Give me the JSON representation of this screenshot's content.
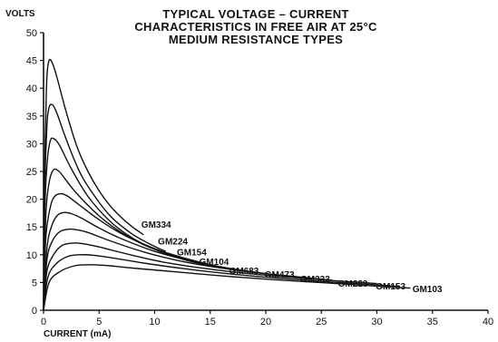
{
  "chart_data": {
    "type": "line",
    "title_lines": [
      "TYPICAL VOLTAGE – CURRENT",
      "CHARACTERISTICS IN FREE AIR AT 25°C",
      "MEDIUM RESISTANCE TYPES"
    ],
    "xlabel": "CURRENT (mA)",
    "ylabel": "VOLTS",
    "xlim": [
      0,
      40
    ],
    "ylim": [
      0,
      50
    ],
    "x_ticks": [
      0,
      5,
      10,
      15,
      20,
      25,
      30,
      35,
      40
    ],
    "y_ticks": [
      0,
      5,
      10,
      15,
      20,
      25,
      30,
      35,
      40,
      45,
      50
    ],
    "grid": false,
    "series": [
      {
        "name": "GM334",
        "points": [
          [
            0,
            0
          ],
          [
            0.1,
            24
          ],
          [
            0.2,
            35
          ],
          [
            0.3,
            42
          ],
          [
            0.5,
            45
          ],
          [
            0.8,
            44.5
          ],
          [
            1.2,
            42
          ],
          [
            2,
            36
          ],
          [
            3,
            29.5
          ],
          [
            4,
            25
          ],
          [
            5,
            21.5
          ],
          [
            6,
            18.8
          ],
          [
            7,
            16.7
          ],
          [
            8,
            15
          ],
          [
            9,
            13.6
          ]
        ]
      },
      {
        "name": "GM224",
        "points": [
          [
            0,
            0
          ],
          [
            0.1,
            21
          ],
          [
            0.3,
            33
          ],
          [
            0.5,
            36.5
          ],
          [
            0.8,
            37
          ],
          [
            1.2,
            35.5
          ],
          [
            2,
            31
          ],
          [
            3,
            26
          ],
          [
            4,
            22.3
          ],
          [
            6,
            17
          ],
          [
            8,
            13.7
          ],
          [
            10,
            11.5
          ],
          [
            11,
            10.6
          ]
        ]
      },
      {
        "name": "GM154",
        "points": [
          [
            0,
            0
          ],
          [
            0.1,
            17
          ],
          [
            0.3,
            26
          ],
          [
            0.6,
            30.5
          ],
          [
            1,
            30.8
          ],
          [
            1.5,
            29.5
          ],
          [
            2.5,
            25.5
          ],
          [
            4,
            20.5
          ],
          [
            6,
            16
          ],
          [
            8,
            13
          ],
          [
            10,
            11
          ],
          [
            12,
            9.6
          ],
          [
            13,
            9
          ]
        ]
      },
      {
        "name": "GM104",
        "points": [
          [
            0,
            0
          ],
          [
            0.2,
            17
          ],
          [
            0.5,
            23
          ],
          [
            0.9,
            25.3
          ],
          [
            1.4,
            25
          ],
          [
            2,
            23.5
          ],
          [
            3,
            21
          ],
          [
            5,
            17
          ],
          [
            7,
            14
          ],
          [
            9,
            11.8
          ],
          [
            11,
            10.2
          ],
          [
            13,
            8.9
          ],
          [
            15,
            8
          ],
          [
            16,
            7.6
          ]
        ]
      },
      {
        "name": "GM683",
        "points": [
          [
            0,
            0
          ],
          [
            0.2,
            13
          ],
          [
            0.6,
            18.5
          ],
          [
            1,
            20.5
          ],
          [
            1.6,
            21
          ],
          [
            2.2,
            20.5
          ],
          [
            3,
            19.3
          ],
          [
            5,
            16.3
          ],
          [
            7,
            13.8
          ],
          [
            9,
            11.9
          ],
          [
            11,
            10.4
          ],
          [
            14,
            8.7
          ],
          [
            17,
            7.4
          ],
          [
            19,
            6.8
          ]
        ]
      },
      {
        "name": "GM473",
        "points": [
          [
            0,
            0
          ],
          [
            0.3,
            11
          ],
          [
            0.7,
            15
          ],
          [
            1.2,
            17
          ],
          [
            1.8,
            17.6
          ],
          [
            2.5,
            17.4
          ],
          [
            3.5,
            16.5
          ],
          [
            5,
            14.8
          ],
          [
            7,
            12.9
          ],
          [
            10,
            10.6
          ],
          [
            13,
            9
          ],
          [
            16,
            7.8
          ],
          [
            20,
            6.6
          ],
          [
            23,
            6
          ]
        ]
      },
      {
        "name": "GM333",
        "points": [
          [
            0,
            0
          ],
          [
            0.3,
            9
          ],
          [
            0.8,
            12.5
          ],
          [
            1.5,
            14.2
          ],
          [
            2.3,
            14.6
          ],
          [
            3,
            14.5
          ],
          [
            4,
            14
          ],
          [
            6,
            12.5
          ],
          [
            9,
            10.5
          ],
          [
            12,
            9
          ],
          [
            15,
            7.9
          ],
          [
            19,
            6.8
          ],
          [
            23,
            6
          ],
          [
            26,
            5.4
          ]
        ]
      },
      {
        "name": "GM223",
        "points": [
          [
            0,
            0
          ],
          [
            0.3,
            7
          ],
          [
            0.9,
            10
          ],
          [
            1.7,
            11.7
          ],
          [
            2.7,
            12.1
          ],
          [
            3.5,
            12
          ],
          [
            5,
            11.4
          ],
          [
            8,
            9.9
          ],
          [
            11,
            8.6
          ],
          [
            15,
            7.4
          ],
          [
            19,
            6.5
          ],
          [
            23,
            5.8
          ],
          [
            27,
            5.2
          ],
          [
            30,
            4.8
          ]
        ]
      },
      {
        "name": "GM153",
        "points": [
          [
            0,
            0
          ],
          [
            0.4,
            6
          ],
          [
            1.2,
            8.5
          ],
          [
            2.2,
            9.7
          ],
          [
            3.3,
            10
          ],
          [
            4.5,
            9.9
          ],
          [
            6,
            9.5
          ],
          [
            9,
            8.5
          ],
          [
            13,
            7.4
          ],
          [
            17,
            6.5
          ],
          [
            21,
            5.8
          ],
          [
            25,
            5.2
          ],
          [
            29,
            4.7
          ],
          [
            32,
            4.3
          ]
        ]
      },
      {
        "name": "GM103",
        "points": [
          [
            0,
            0
          ],
          [
            0.5,
            5
          ],
          [
            1.5,
            7
          ],
          [
            2.8,
            8
          ],
          [
            4.2,
            8.2
          ],
          [
            6,
            8
          ],
          [
            8,
            7.6
          ],
          [
            12,
            6.9
          ],
          [
            16,
            6.2
          ],
          [
            20,
            5.6
          ],
          [
            24,
            5.1
          ],
          [
            28,
            4.6
          ],
          [
            31,
            4.2
          ],
          [
            33,
            4
          ]
        ]
      }
    ],
    "curve_labels": [
      {
        "text": "GM334",
        "x": 8.8,
        "y": 15.5
      },
      {
        "text": "GM224",
        "x": 10.3,
        "y": 12.5
      },
      {
        "text": "GM154",
        "x": 12.0,
        "y": 10.5
      },
      {
        "text": "GM104",
        "x": 14.0,
        "y": 8.8
      },
      {
        "text": "GM683",
        "x": 16.7,
        "y": 7.2
      },
      {
        "text": "GM473",
        "x": 19.9,
        "y": 6.5
      },
      {
        "text": "GM333",
        "x": 23.1,
        "y": 5.7
      },
      {
        "text": "GM223",
        "x": 26.5,
        "y": 4.9
      },
      {
        "text": "GM153",
        "x": 29.9,
        "y": 4.4
      },
      {
        "text": "GM103",
        "x": 33.2,
        "y": 3.9
      }
    ]
  }
}
